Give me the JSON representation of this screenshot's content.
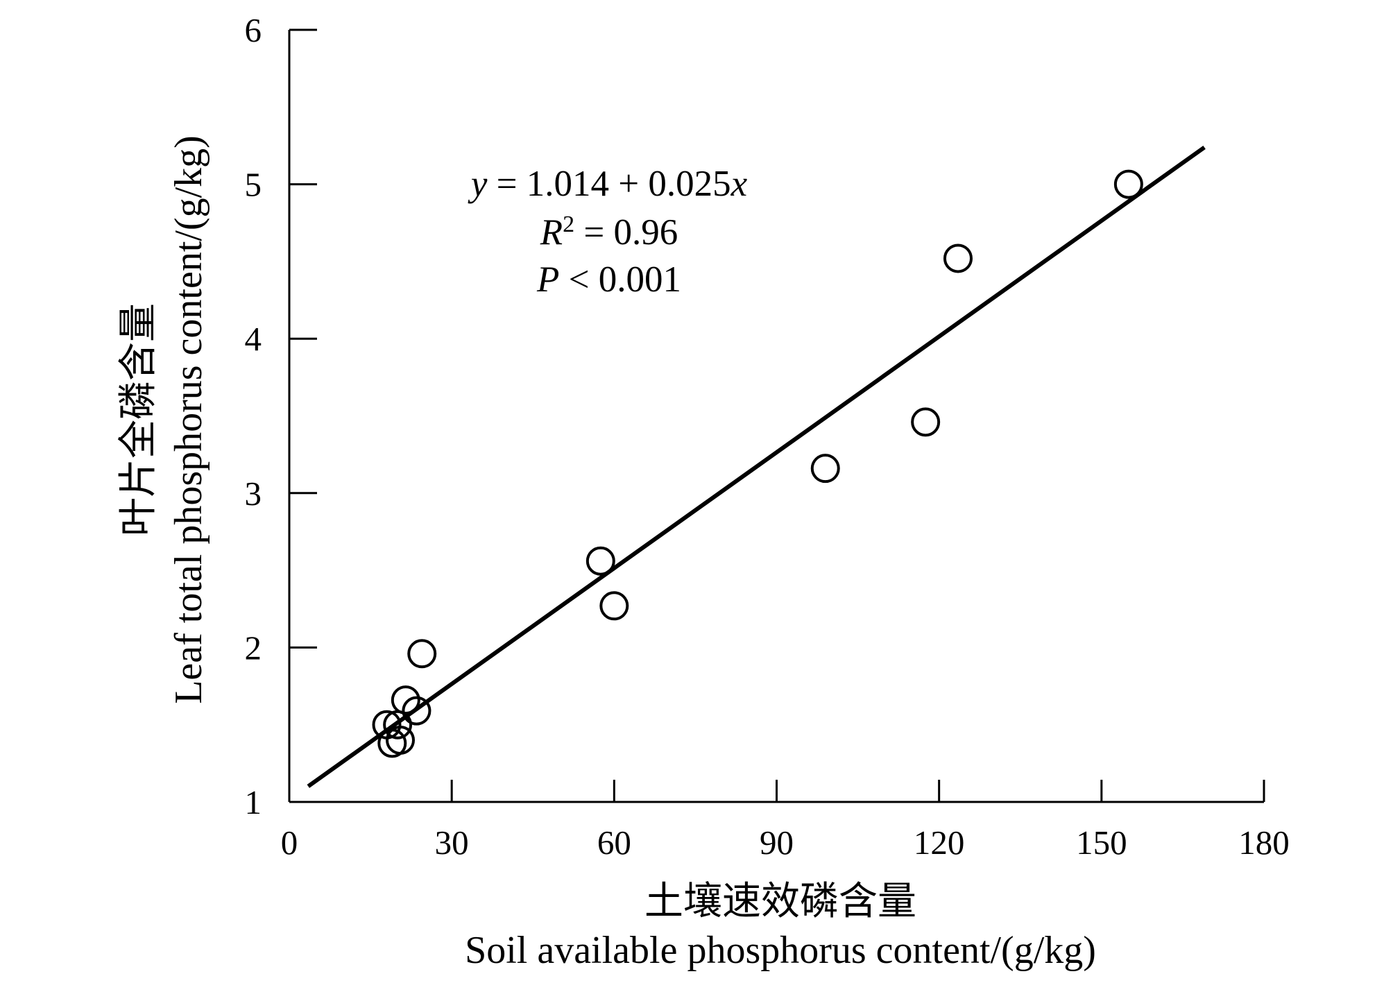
{
  "chart_data": {
    "type": "scatter",
    "title": "",
    "xlabel_cn": "土壤速效磷含量",
    "xlabel_en": "Soil available phosphorus content/(g/kg)",
    "ylabel_cn": "叶片全磷含量",
    "ylabel_en": "Leaf total phosphorus content/(g/kg)",
    "xlim": [
      0,
      180
    ],
    "ylim": [
      1,
      6
    ],
    "xticks": [
      0,
      30,
      60,
      90,
      120,
      150,
      180
    ],
    "yticks": [
      1,
      2,
      3,
      4,
      5,
      6
    ],
    "grid": false,
    "legend": "none",
    "points": [
      {
        "x": 18,
        "y": 1.5
      },
      {
        "x": 19,
        "y": 1.38
      },
      {
        "x": 20,
        "y": 1.5
      },
      {
        "x": 20.5,
        "y": 1.4
      },
      {
        "x": 21.5,
        "y": 1.66
      },
      {
        "x": 23.5,
        "y": 1.59
      },
      {
        "x": 24.5,
        "y": 1.96
      },
      {
        "x": 57.5,
        "y": 2.56
      },
      {
        "x": 60,
        "y": 2.27
      },
      {
        "x": 99,
        "y": 3.16
      },
      {
        "x": 117.5,
        "y": 3.46
      },
      {
        "x": 123.5,
        "y": 4.52
      },
      {
        "x": 155,
        "y": 5.0
      }
    ],
    "fit_line": {
      "x_start": 3.5,
      "x_end": 169
    },
    "annotation": {
      "eq_y": "y",
      "eq_rest": " = 1.014 + 0.025",
      "eq_x": "x",
      "r2_r": "R",
      "r2_sup": "2",
      "r2_rest": " = 0.96",
      "p_p": "P",
      "p_rest": " < 0.001"
    }
  }
}
